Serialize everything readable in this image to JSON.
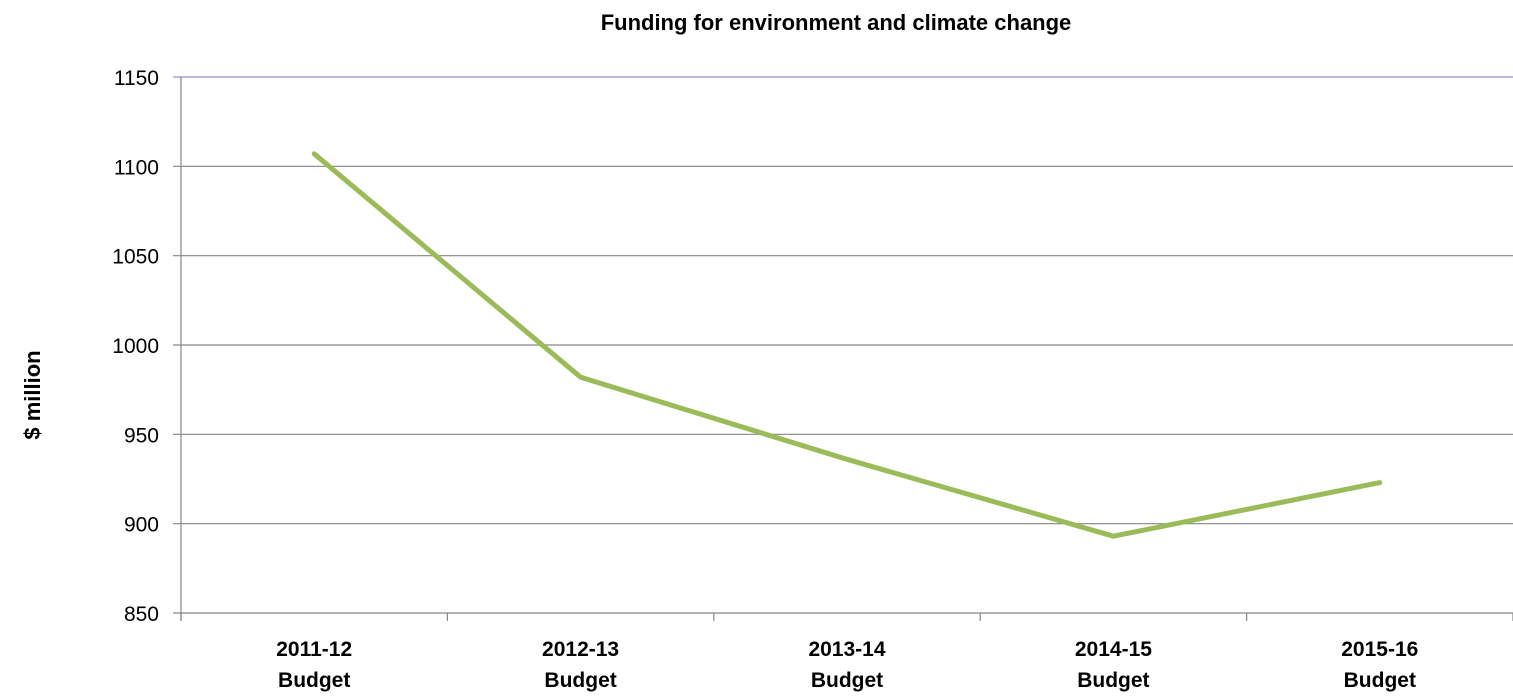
{
  "chart_data": {
    "type": "line",
    "title": "Funding for environment and climate change",
    "xlabel": "",
    "ylabel": "$ million",
    "categories": [
      [
        "2011-12",
        "Budget"
      ],
      [
        "2012-13",
        "Budget"
      ],
      [
        "2013-14",
        "Budget"
      ],
      [
        "2014-15",
        "Budget"
      ],
      [
        "2015-16",
        "Budget"
      ]
    ],
    "series": [
      {
        "values": [
          1107,
          982,
          936,
          893,
          923
        ],
        "color": "#9bbb59"
      }
    ],
    "ylim": [
      850,
      1150
    ],
    "yticks": [
      850,
      900,
      950,
      1000,
      1050,
      1100,
      1150
    ],
    "grid": true,
    "legend": "none",
    "colors": {
      "gridline": "#868686",
      "top_gridline": "#9b8fca",
      "axis": "#868686",
      "text": "#000000"
    }
  }
}
